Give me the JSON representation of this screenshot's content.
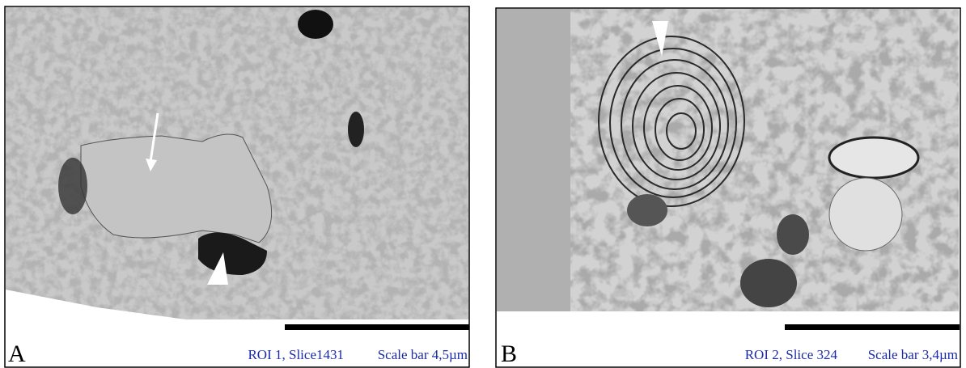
{
  "panels": [
    {
      "label": "A",
      "caption": "ROI 1, Slice1431",
      "scale_bar": "Scale bar 4,5µm"
    },
    {
      "label": "B",
      "caption": "ROI 2, Slice 324",
      "scale_bar": "Scale bar 3,4µm"
    }
  ]
}
